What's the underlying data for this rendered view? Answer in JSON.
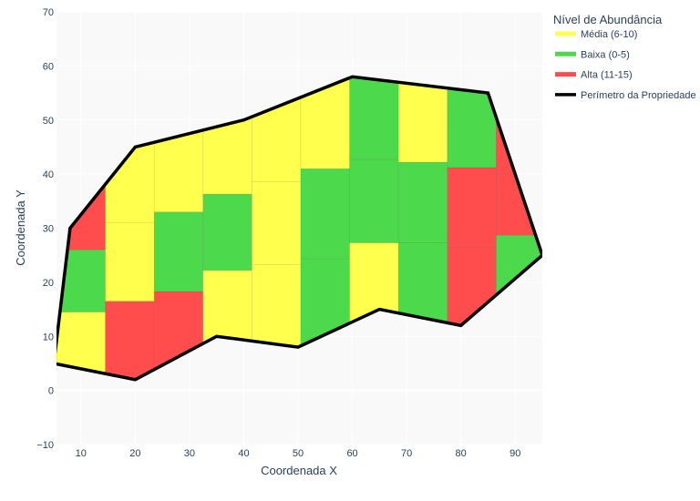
{
  "chart_data": {
    "type": "heatmap",
    "xlabel": "Coordenada X",
    "ylabel": "Coordenada Y",
    "xlim": [
      5.5,
      95
    ],
    "ylim": [
      -10,
      70
    ],
    "x_ticks": [
      10,
      20,
      30,
      40,
      50,
      60,
      70,
      80,
      90
    ],
    "y_ticks": [
      -10,
      0,
      10,
      20,
      30,
      40,
      50,
      60,
      70
    ],
    "legend": {
      "title": "Nível de Abundância",
      "placement": "top-right",
      "entries": [
        {
          "label": "Média (6-10)",
          "color": "#ffff4d"
        },
        {
          "label": "Baixa (0-5)",
          "color": "#4cd94c"
        },
        {
          "label": "Alta (11-15)",
          "color": "#ff4d4d"
        },
        {
          "label": "Perímetro da Propriedade",
          "color": "#000000"
        }
      ]
    },
    "level_colors": {
      "media": "#ffff4d",
      "baixa": "#4cd94c",
      "alta": "#ff4d4d",
      "perimetro": "#000000"
    },
    "columns": [
      {
        "x0": 5.5,
        "x1": 14.5,
        "cells": [
          {
            "y0": 0,
            "y1": 14.5,
            "level": "media"
          },
          {
            "y0": 14.5,
            "y1": 26,
            "level": "baixa"
          },
          {
            "y0": 26,
            "y1": 40,
            "level": "alta"
          }
        ]
      },
      {
        "x0": 14.5,
        "x1": 23.5,
        "cells": [
          {
            "y0": 0,
            "y1": 16.5,
            "level": "alta"
          },
          {
            "y0": 16.5,
            "y1": 31,
            "level": "media"
          },
          {
            "y0": 31,
            "y1": 50,
            "level": "media"
          }
        ]
      },
      {
        "x0": 23.5,
        "x1": 32.5,
        "cells": [
          {
            "y0": 0,
            "y1": 18.3,
            "level": "alta"
          },
          {
            "y0": 18.3,
            "y1": 33,
            "level": "baixa"
          },
          {
            "y0": 33,
            "y1": 50,
            "level": "media"
          }
        ]
      },
      {
        "x0": 32.5,
        "x1": 41.5,
        "cells": [
          {
            "y0": 0,
            "y1": 22.2,
            "level": "media"
          },
          {
            "y0": 22.2,
            "y1": 36.3,
            "level": "baixa"
          },
          {
            "y0": 36.3,
            "y1": 55,
            "level": "media"
          }
        ]
      },
      {
        "x0": 41.5,
        "x1": 50.5,
        "cells": [
          {
            "y0": 0,
            "y1": 23.3,
            "level": "media"
          },
          {
            "y0": 23.3,
            "y1": 38.6,
            "level": "media"
          },
          {
            "y0": 38.6,
            "y1": 55,
            "level": "media"
          }
        ]
      },
      {
        "x0": 50.5,
        "x1": 59.5,
        "cells": [
          {
            "y0": 0,
            "y1": 24.3,
            "level": "baixa"
          },
          {
            "y0": 24.3,
            "y1": 41,
            "level": "baixa"
          },
          {
            "y0": 41,
            "y1": 60,
            "level": "media"
          }
        ]
      },
      {
        "x0": 59.5,
        "x1": 68.5,
        "cells": [
          {
            "y0": 0,
            "y1": 27.3,
            "level": "media"
          },
          {
            "y0": 27.3,
            "y1": 42.6,
            "level": "baixa"
          },
          {
            "y0": 42.6,
            "y1": 60,
            "level": "baixa"
          }
        ]
      },
      {
        "x0": 68.5,
        "x1": 77.5,
        "cells": [
          {
            "y0": 0,
            "y1": 27.3,
            "level": "baixa"
          },
          {
            "y0": 27.3,
            "y1": 42.2,
            "level": "baixa"
          },
          {
            "y0": 42.2,
            "y1": 60,
            "level": "media"
          }
        ]
      },
      {
        "x0": 77.5,
        "x1": 86.5,
        "cells": [
          {
            "y0": 0,
            "y1": 26.5,
            "level": "alta"
          },
          {
            "y0": 26.5,
            "y1": 41.2,
            "level": "alta"
          },
          {
            "y0": 41.2,
            "y1": 60,
            "level": "baixa"
          }
        ]
      },
      {
        "x0": 86.5,
        "x1": 95.5,
        "cells": [
          {
            "y0": 0,
            "y1": 28.7,
            "level": "baixa"
          },
          {
            "y0": 28.7,
            "y1": 40,
            "level": "alta"
          },
          {
            "y0": 40,
            "y1": 60,
            "level": "alta"
          }
        ]
      }
    ],
    "perimeter": [
      [
        5,
        5
      ],
      [
        8,
        30
      ],
      [
        20,
        45
      ],
      [
        40,
        50
      ],
      [
        60,
        58
      ],
      [
        85,
        55
      ],
      [
        95,
        25
      ],
      [
        80,
        12
      ],
      [
        65,
        15
      ],
      [
        50,
        8
      ],
      [
        35,
        10
      ],
      [
        20,
        2
      ],
      [
        5,
        5
      ]
    ],
    "grid": true
  }
}
